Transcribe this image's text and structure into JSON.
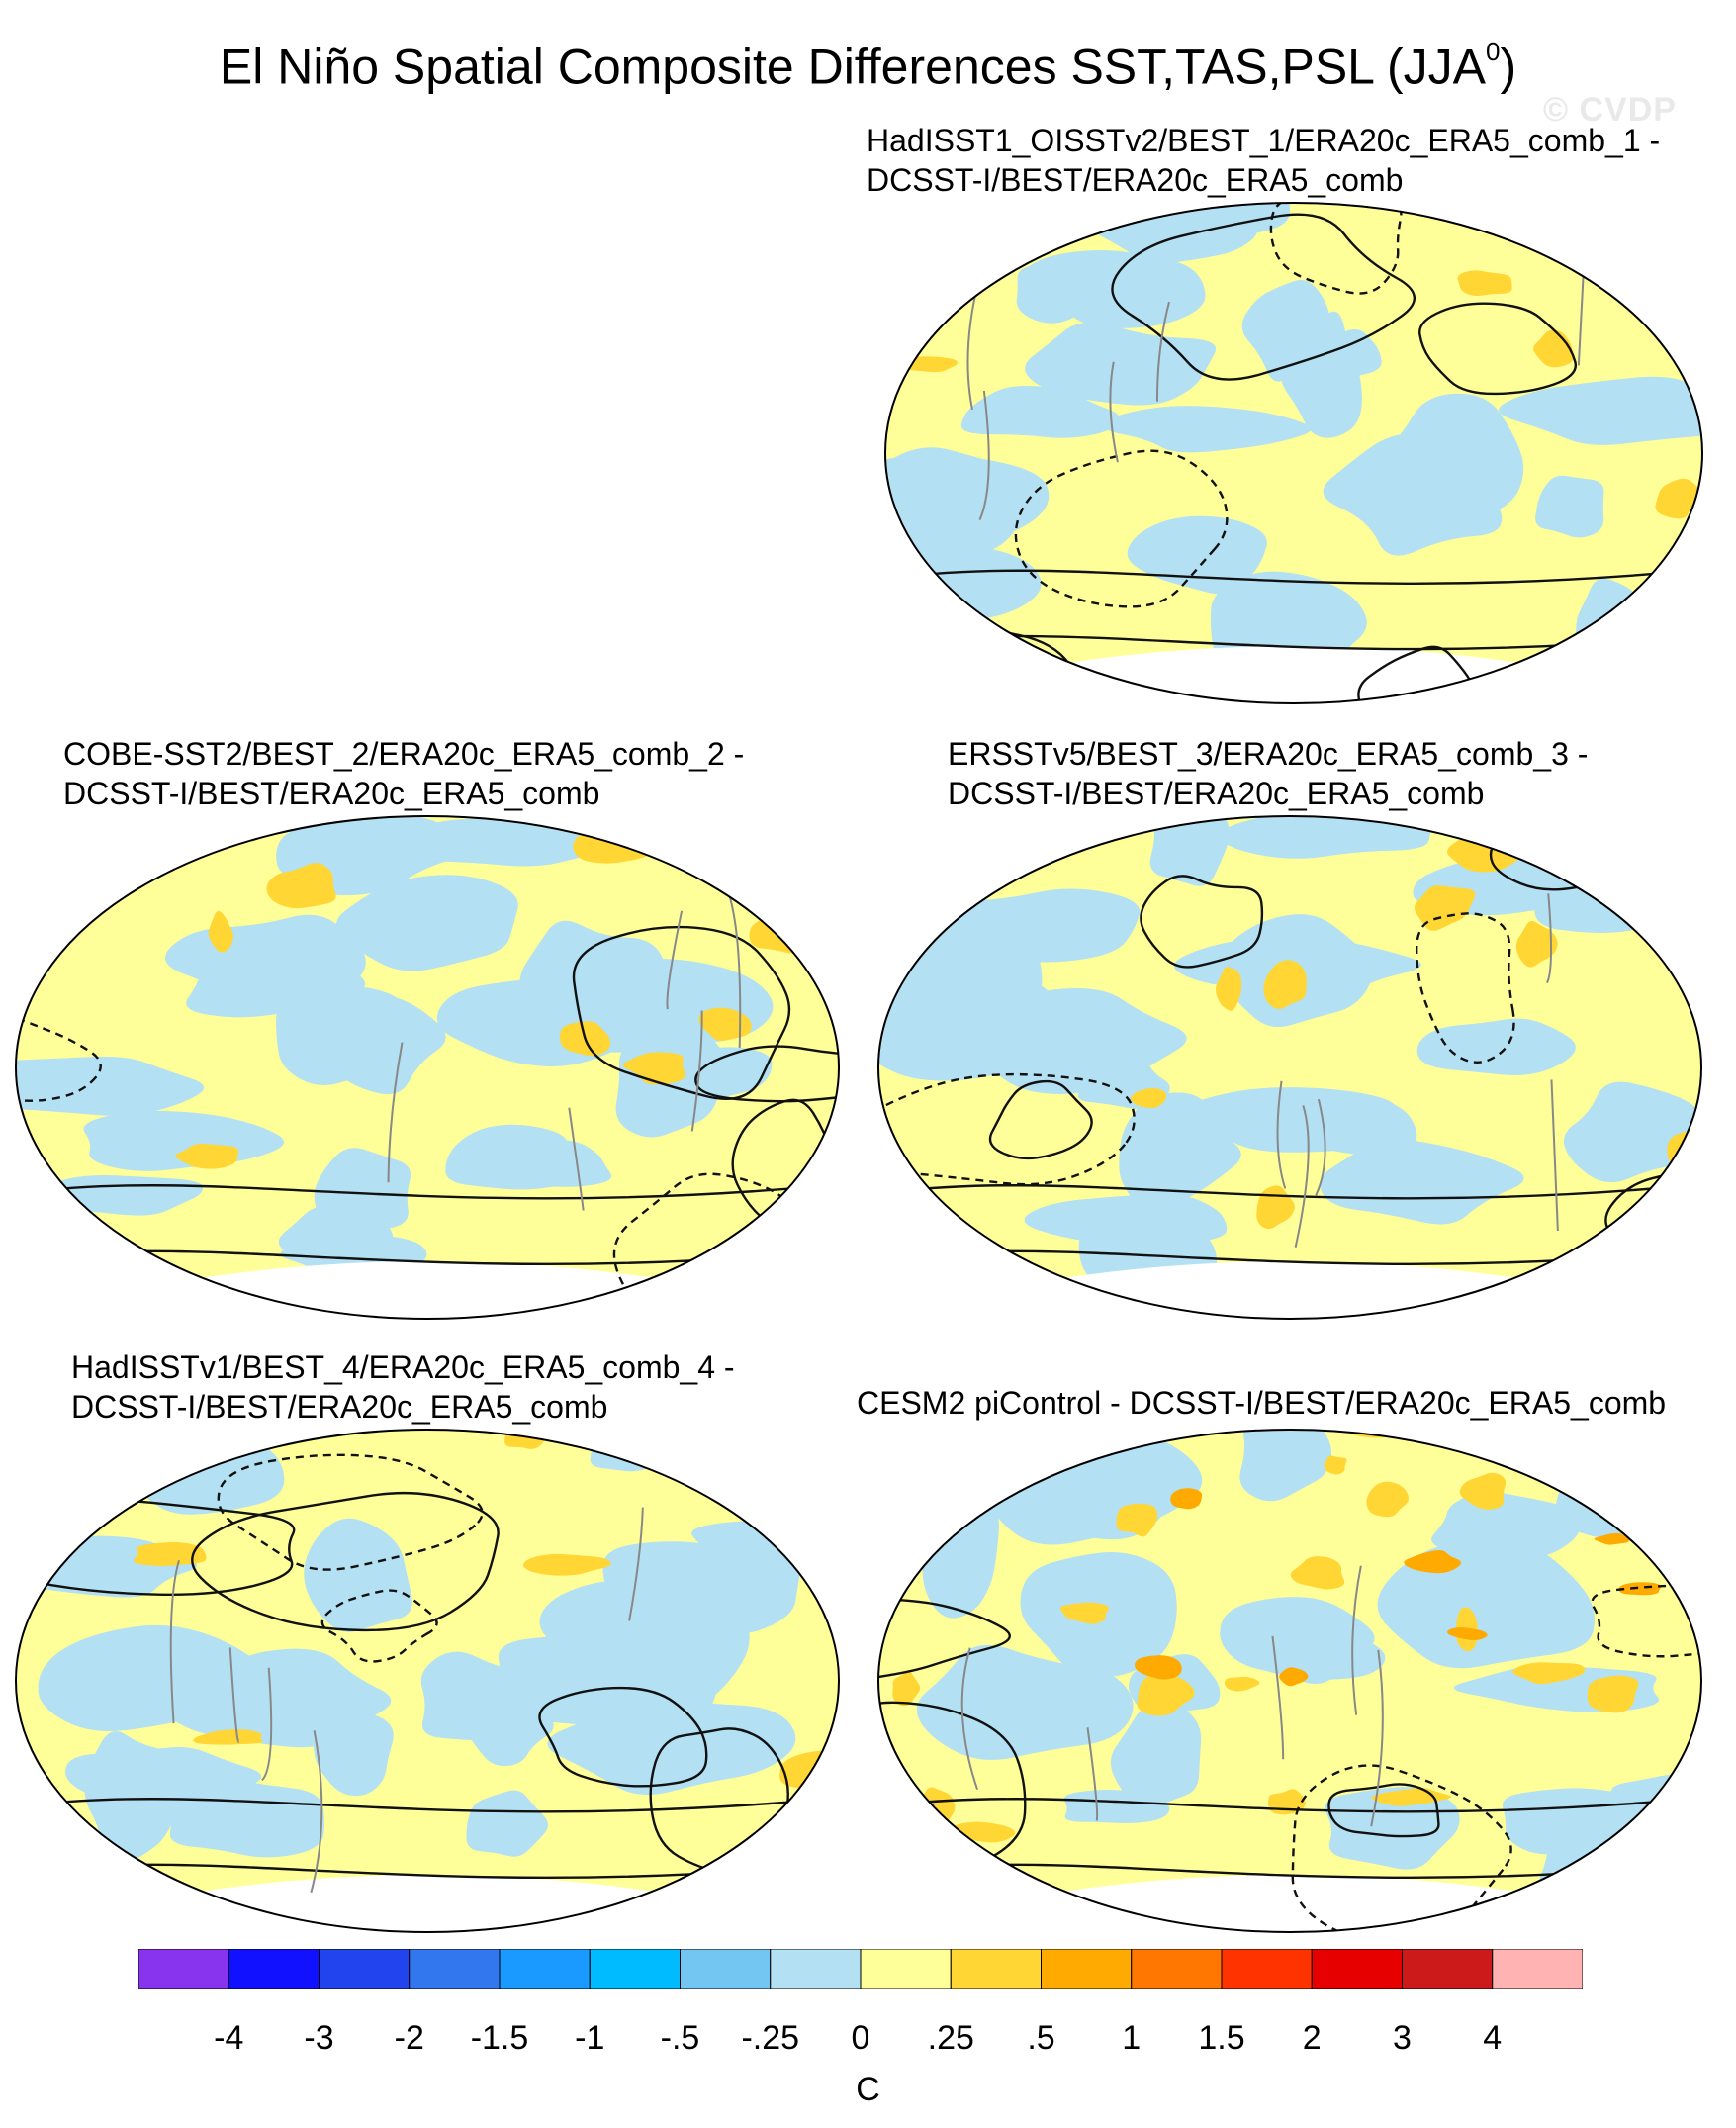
{
  "figure": {
    "title": "El Niño Spatial Composite Differences SST,TAS,PSL (JJA",
    "title_superscript": "0",
    "title_close": ")",
    "watermark": "© CVDP"
  },
  "panels": [
    {
      "id": "p1",
      "line1": "HadISST1_OISSTv2/BEST_1/ERA20c_ERA5_comb_1 -",
      "line2": "DCSST-I/BEST/ERA20c_ERA5_comb",
      "dominant_colors": [
        "#ffff99",
        "#b3e0f2",
        "#ffd633"
      ]
    },
    {
      "id": "p2",
      "line1": "COBE-SST2/BEST_2/ERA20c_ERA5_comb_2 -",
      "line2": "DCSST-I/BEST/ERA20c_ERA5_comb",
      "dominant_colors": [
        "#ffff99",
        "#b3e0f2",
        "#ffd633"
      ]
    },
    {
      "id": "p3",
      "line1": "ERSSTv5/BEST_3/ERA20c_ERA5_comb_3 -",
      "line2": "DCSST-I/BEST/ERA20c_ERA5_comb",
      "dominant_colors": [
        "#ffff99",
        "#b3e0f2",
        "#ffd633"
      ]
    },
    {
      "id": "p4",
      "line1": "HadISSTv1/BEST_4/ERA20c_ERA5_comb_4 -",
      "line2": "DCSST-I/BEST/ERA20c_ERA5_comb",
      "dominant_colors": [
        "#ffff99",
        "#b3e0f2",
        "#ffd633"
      ]
    },
    {
      "id": "p5",
      "line1": "CESM2 piControl - DCSST-I/BEST/ERA20c_ERA5_comb",
      "line2": "",
      "dominant_colors": [
        "#ffff99",
        "#b3e0f2",
        "#ffd633",
        "#ffaa00"
      ]
    }
  ],
  "colorbar": {
    "units": "C",
    "colors": [
      "#8833ee",
      "#1111ff",
      "#2244ee",
      "#3377ee",
      "#1a99ff",
      "#00bbff",
      "#73c6f2",
      "#b3e0f2",
      "#ffff99",
      "#ffd633",
      "#ffaa00",
      "#ff7700",
      "#ff3300",
      "#e60000",
      "#cc1a1a",
      "#ffb3b3"
    ],
    "ticks": [
      "-4",
      "-3",
      "-2",
      "-1.5",
      "-1",
      "-.5",
      "-.25",
      "0",
      ".25",
      ".5",
      "1",
      "1.5",
      "2",
      "3",
      "4"
    ]
  }
}
